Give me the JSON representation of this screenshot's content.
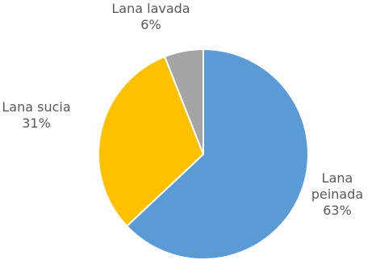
{
  "chart_data": {
    "type": "pie",
    "title": "",
    "categories": [
      "Lana peinada",
      "Lana sucia",
      "Lana lavada"
    ],
    "values": [
      63,
      31,
      6
    ],
    "value_labels": [
      "63%",
      "31%",
      "6%"
    ],
    "label_lines": [
      [
        "Lana",
        "peinada"
      ],
      [
        "Lana sucia"
      ],
      [
        "Lana lavada"
      ]
    ],
    "colors": [
      "#5b9bd5",
      "#ffc000",
      "#a5a5a5"
    ],
    "start_angle_deg": 0,
    "direction": "clockwise",
    "legend": "none"
  }
}
